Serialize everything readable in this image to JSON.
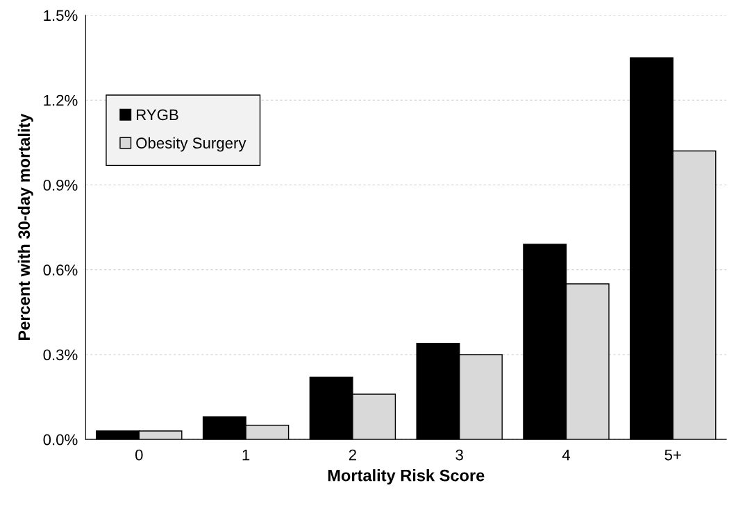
{
  "chart_data": {
    "type": "bar",
    "xlabel": "Mortality Risk Score",
    "ylabel": "Percent with 30-day mortality",
    "categories": [
      "0",
      "1",
      "2",
      "3",
      "4",
      "5+"
    ],
    "series": [
      {
        "name": "RYGB",
        "color": "#000000",
        "values": [
          0.03,
          0.08,
          0.22,
          0.34,
          0.69,
          1.35
        ]
      },
      {
        "name": "Obesity Surgery",
        "color": "#d9d9d9",
        "values": [
          0.03,
          0.05,
          0.16,
          0.3,
          0.55,
          1.02
        ]
      }
    ],
    "ylim": [
      0,
      1.5
    ],
    "yticks": [
      {
        "value": 0,
        "label": "0.0%"
      },
      {
        "value": 0.3,
        "label": "0.3%"
      },
      {
        "value": 0.6,
        "label": "0.6%"
      },
      {
        "value": 0.9,
        "label": "0.9%"
      },
      {
        "value": 1.2,
        "label": "1.2%"
      },
      {
        "value": 1.5,
        "label": "1.5%"
      }
    ],
    "grid": "y",
    "legend": "top left"
  }
}
